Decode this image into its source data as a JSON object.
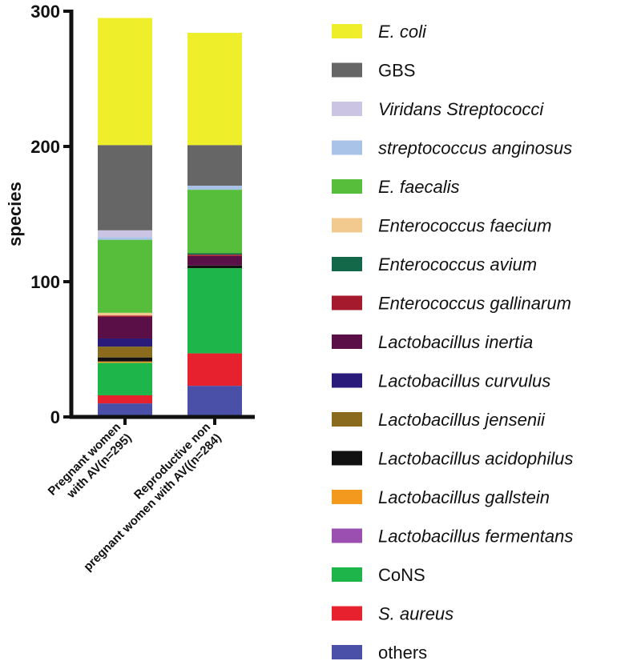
{
  "chart_data": {
    "type": "bar",
    "stacked": true,
    "title": "",
    "xlabel": "",
    "ylabel": "species",
    "ylim": [
      0,
      300
    ],
    "yticks": [
      0,
      100,
      200,
      300
    ],
    "legend_position": "right",
    "categories": [
      [
        "Pregnant women",
        "with AV(n=295)"
      ],
      [
        "Reproductive non",
        "pregnant women with AV((n=284)"
      ]
    ],
    "series": [
      {
        "name": "others",
        "italic": false,
        "color": "#4a4fa8",
        "values": [
          10,
          23
        ]
      },
      {
        "name": "S. aureus",
        "italic": true,
        "color": "#e8212e",
        "values": [
          6,
          24
        ]
      },
      {
        "name": "CoNS",
        "italic": false,
        "color": "#1eb54a",
        "values": [
          24,
          63
        ]
      },
      {
        "name": "Lactobacillus fermentans",
        "italic": true,
        "color": "#9b4fb0",
        "values": [
          0,
          0
        ]
      },
      {
        "name": "Lactobacillus gallstein",
        "italic": true,
        "color": "#f39a1e",
        "values": [
          1,
          0
        ]
      },
      {
        "name": "Lactobacillus acidophilus",
        "italic": true,
        "color": "#111111",
        "values": [
          3,
          2
        ]
      },
      {
        "name": "Lactobacillus jensenii",
        "italic": true,
        "color": "#8a6a1c",
        "values": [
          8,
          0
        ]
      },
      {
        "name": "Lactobacillus curvulus",
        "italic": true,
        "color": "#2a1a7a",
        "values": [
          6,
          0
        ]
      },
      {
        "name": "Lactobacillus inertia",
        "italic": true,
        "color": "#5a1046",
        "values": [
          16,
          7
        ]
      },
      {
        "name": "Enterococcus gallinarum",
        "italic": true,
        "color": "#a51a2c",
        "values": [
          1,
          1
        ]
      },
      {
        "name": "Enterococcus avium",
        "italic": true,
        "color": "#13684a",
        "values": [
          0,
          1
        ]
      },
      {
        "name": "Enterococcus faecium",
        "italic": true,
        "color": "#f2c98e",
        "values": [
          2,
          0
        ]
      },
      {
        "name": "E. faecalis",
        "italic": true,
        "color": "#56be3a",
        "values": [
          54,
          47
        ]
      },
      {
        "name": "streptococcus anginosus",
        "italic": true,
        "color": "#a9c3e8",
        "values": [
          2,
          3
        ]
      },
      {
        "name": "Viridans Streptococci",
        "italic": true,
        "color": "#cbc4e3",
        "values": [
          5,
          0
        ]
      },
      {
        "name": "GBS",
        "italic": false,
        "color": "#666666",
        "values": [
          63,
          30
        ]
      },
      {
        "name": "E. coli",
        "italic": true,
        "color": "#eeee2a",
        "values": [
          94,
          83
        ]
      }
    ]
  }
}
